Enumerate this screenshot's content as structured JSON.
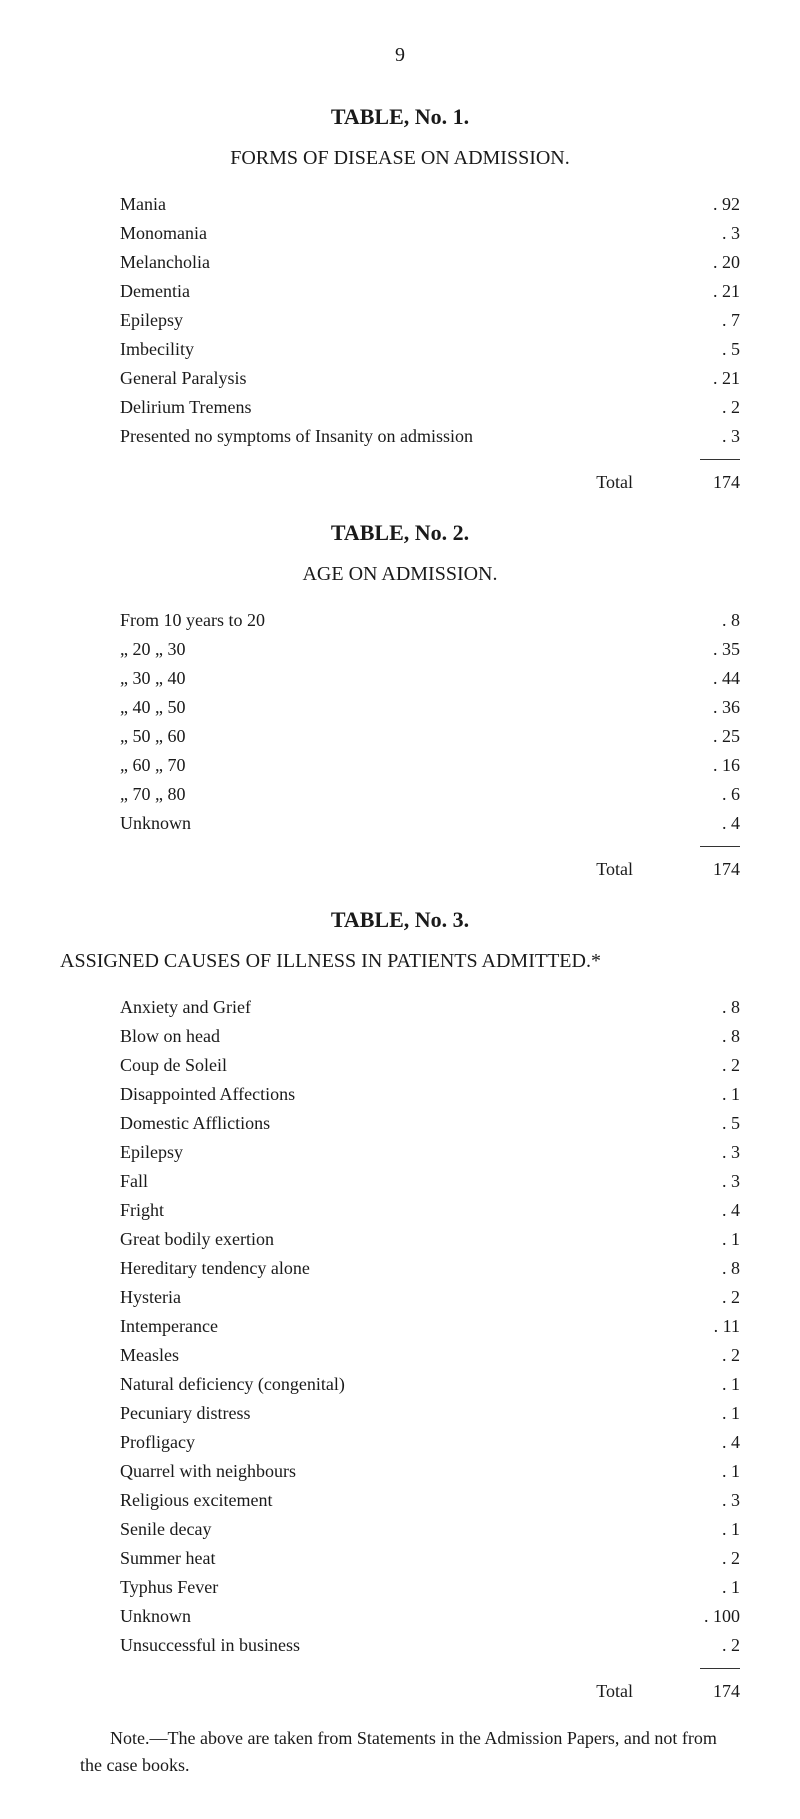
{
  "page_number": "9",
  "table1": {
    "title": "TABLE, No. 1.",
    "subtitle": "FORMS OF DISEASE ON ADMISSION.",
    "rows": [
      {
        "label": "Mania",
        "value": "92"
      },
      {
        "label": "Monomania",
        "value": "3"
      },
      {
        "label": "Melancholia",
        "value": "20"
      },
      {
        "label": "Dementia",
        "value": "21"
      },
      {
        "label": "Epilepsy",
        "value": "7"
      },
      {
        "label": "Imbecility",
        "value": "5"
      },
      {
        "label": "General Paralysis",
        "value": "21"
      },
      {
        "label": "Delirium Tremens",
        "value": "2"
      },
      {
        "label": "Presented no symptoms of Insanity on admission",
        "value": "3"
      }
    ],
    "total_label": "Total",
    "total_value": "174"
  },
  "table2": {
    "title": "TABLE, No. 2.",
    "subtitle": "AGE ON ADMISSION.",
    "rows": [
      {
        "label": "From 10 years to 20",
        "value": "8"
      },
      {
        "label": "„ 20 „ 30",
        "value": "35"
      },
      {
        "label": "„ 30 „ 40",
        "value": "44"
      },
      {
        "label": "„ 40 „ 50",
        "value": "36"
      },
      {
        "label": "„ 50 „ 60",
        "value": "25"
      },
      {
        "label": "„ 60 „ 70",
        "value": "16"
      },
      {
        "label": "„ 70 „ 80",
        "value": "6"
      },
      {
        "label": "Unknown",
        "value": "4"
      }
    ],
    "total_label": "Total",
    "total_value": "174"
  },
  "table3": {
    "title": "TABLE, No. 3.",
    "subtitle": "ASSIGNED CAUSES OF ILLNESS IN PATIENTS ADMITTED.*",
    "rows": [
      {
        "label": "Anxiety and Grief",
        "value": "8"
      },
      {
        "label": "Blow on head",
        "value": "8"
      },
      {
        "label": "Coup de Soleil",
        "value": "2"
      },
      {
        "label": "Disappointed Affections",
        "value": "1"
      },
      {
        "label": "Domestic Afflictions",
        "value": "5"
      },
      {
        "label": "Epilepsy",
        "value": "3"
      },
      {
        "label": "Fall",
        "value": "3"
      },
      {
        "label": "Fright",
        "value": "4"
      },
      {
        "label": "Great bodily exertion",
        "value": "1"
      },
      {
        "label": "Hereditary tendency alone",
        "value": "8"
      },
      {
        "label": "Hysteria",
        "value": "2"
      },
      {
        "label": "Intemperance",
        "value": "11"
      },
      {
        "label": "Measles",
        "value": "2"
      },
      {
        "label": "Natural deficiency (congenital)",
        "value": "1"
      },
      {
        "label": "Pecuniary distress",
        "value": "1"
      },
      {
        "label": "Profligacy",
        "value": "4"
      },
      {
        "label": "Quarrel with neighbours",
        "value": "1"
      },
      {
        "label": "Religious excitement",
        "value": "3"
      },
      {
        "label": "Senile decay",
        "value": "1"
      },
      {
        "label": "Summer heat",
        "value": "2"
      },
      {
        "label": "Typhus Fever",
        "value": "1"
      },
      {
        "label": "Unknown",
        "value": "100"
      },
      {
        "label": "Unsuccessful in business",
        "value": "2"
      }
    ],
    "total_label": "Total",
    "total_value": "174"
  },
  "footnote": "Note.—The above are taken from Statements in the Admission Papers, and not from the case books."
}
